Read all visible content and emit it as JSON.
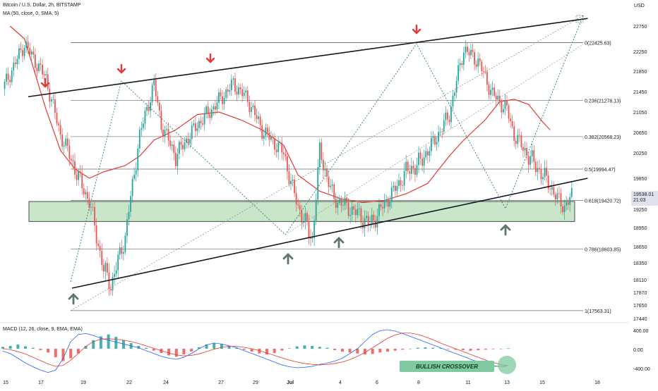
{
  "header": {
    "title": "Bitcoin / U.S. Dollar, 2h, BITSTAMP",
    "ma_label": "MA (50, close, 0, SMA, 5)",
    "currency": "USD"
  },
  "macd": {
    "label": "MACD (12, 26, close, 9, EMA, EMA)",
    "axis_labels": [
      "400.00",
      "0.00",
      "-400.00"
    ],
    "annotation": "BULLISH CROSSOVER"
  },
  "price_label": {
    "value": "19538.01",
    "countdown": "21:03"
  },
  "colors": {
    "up": "#26a69a",
    "down": "#ef5350",
    "ma": "#e53935",
    "zone": "#a5d6a7",
    "arrow_red": "#e53935",
    "arrow_grey": "#5d7670",
    "fib": "#555555"
  },
  "chart_data": {
    "type": "candlestick",
    "title": "Bitcoin / U.S. Dollar, 2h, BITSTAMP",
    "x_ticks": [
      "15",
      "17",
      "19",
      "22",
      "24",
      "27",
      "29",
      "Jul",
      "4",
      "6",
      "8",
      "11",
      "13",
      "15",
      "18"
    ],
    "y_ticks": [
      22750,
      22250,
      21850,
      21450,
      21050,
      20650,
      20250,
      19850,
      19250,
      18950,
      18650,
      18350,
      18110,
      17870,
      17650,
      17440
    ],
    "ylim": [
      17440,
      22950
    ],
    "last_price": 19538.01,
    "fib_levels": [
      {
        "ratio": 0,
        "price": 22425.63,
        "label": "0(22425.63)"
      },
      {
        "ratio": 0.236,
        "price": 21278.13,
        "label": "0.236(21278.13)"
      },
      {
        "ratio": 0.382,
        "price": 20568.23,
        "label": "0.382(20568.23)"
      },
      {
        "ratio": 0.5,
        "price": 19994.47,
        "label": "0.5(19994.47)"
      },
      {
        "ratio": 0.618,
        "price": 19420.72,
        "label": "0.618(19420.72)"
      },
      {
        "ratio": 0.786,
        "price": 18603.85,
        "label": "0.786(18603.85)"
      },
      {
        "ratio": 1,
        "price": 17563.31,
        "label": "1(17563.31)"
      }
    ],
    "support_zone": [
      19050,
      19400
    ],
    "price_path": [
      [
        0,
        21500
      ],
      [
        3,
        22400
      ],
      [
        6,
        21700
      ],
      [
        8,
        20600
      ],
      [
        10,
        20000
      ],
      [
        12,
        19400
      ],
      [
        14,
        18250
      ],
      [
        15,
        18000
      ],
      [
        17,
        18800
      ],
      [
        19,
        20600
      ],
      [
        21,
        21600
      ],
      [
        22,
        20800
      ],
      [
        24,
        20200
      ],
      [
        27,
        20800
      ],
      [
        29,
        21100
      ],
      [
        32,
        21600
      ],
      [
        34,
        21300
      ],
      [
        36,
        20700
      ],
      [
        39,
        20250
      ],
      [
        41,
        19300
      ],
      [
        43,
        18750
      ],
      [
        44,
        20300
      ],
      [
        46,
        19450
      ],
      [
        49,
        19200
      ],
      [
        51,
        19000
      ],
      [
        53,
        19350
      ],
      [
        56,
        19950
      ],
      [
        58,
        20100
      ],
      [
        60,
        20500
      ],
      [
        62,
        21000
      ],
      [
        64,
        22300
      ],
      [
        66,
        22050
      ],
      [
        68,
        21400
      ],
      [
        70,
        21100
      ],
      [
        71,
        20600
      ],
      [
        73,
        20200
      ],
      [
        75,
        19900
      ],
      [
        76,
        19700
      ],
      [
        77,
        19450
      ],
      [
        78,
        19300
      ],
      [
        79,
        19500
      ]
    ],
    "ma_path": [
      [
        1,
        22750
      ],
      [
        3,
        22500
      ],
      [
        6,
        21100
      ],
      [
        8,
        20300
      ],
      [
        10,
        20000
      ],
      [
        12,
        19850
      ],
      [
        14,
        19950
      ],
      [
        17,
        20050
      ],
      [
        19,
        20200
      ],
      [
        21,
        20500
      ],
      [
        24,
        20700
      ],
      [
        27,
        21000
      ],
      [
        30,
        21050
      ],
      [
        33,
        20900
      ],
      [
        36,
        20700
      ],
      [
        39,
        20400
      ],
      [
        41,
        19900
      ],
      [
        44,
        19600
      ],
      [
        47,
        19450
      ],
      [
        50,
        19380
      ],
      [
        53,
        19420
      ],
      [
        56,
        19550
      ],
      [
        59,
        19750
      ],
      [
        62,
        20200
      ],
      [
        64,
        20500
      ],
      [
        67,
        20900
      ],
      [
        69,
        21250
      ],
      [
        71,
        21300
      ],
      [
        73,
        21200
      ],
      [
        75,
        20850
      ],
      [
        76,
        20700
      ]
    ],
    "trendline_upper": [
      [
        0,
        21350
      ],
      [
        82,
        22900
      ]
    ],
    "trendline_lower": [
      [
        10,
        17950
      ],
      [
        82,
        19850
      ]
    ],
    "macd_hist": [
      40,
      60,
      90,
      50,
      20,
      -30,
      -80,
      -180,
      -260,
      -200,
      -100,
      60,
      180,
      260,
      300,
      250,
      180,
      120,
      60,
      20,
      -40,
      -90,
      -140,
      -170,
      -120,
      -60,
      30,
      90,
      120,
      100,
      60,
      20,
      -20,
      -60,
      -100,
      -120,
      -90,
      -40,
      10,
      50,
      70,
      60,
      40,
      20,
      -30,
      -60,
      -80,
      -100,
      -120,
      -110,
      -80,
      -60,
      -40,
      -20,
      0,
      20,
      30,
      20,
      10,
      -10,
      -20,
      -30,
      -40,
      -30,
      -20,
      -10,
      0,
      10
    ],
    "macd_line": [
      -50,
      -100,
      -200,
      -300,
      -380,
      -450,
      -500,
      -450,
      -200,
      150,
      300,
      320,
      280,
      220,
      180,
      140,
      100,
      60,
      20,
      -40,
      -100,
      -160,
      -200,
      -220,
      -180,
      -100,
      0,
      80,
      120,
      100,
      60,
      20,
      -40,
      -100,
      -160,
      -220,
      -280,
      -340,
      -380,
      -400,
      -390,
      -370,
      -330,
      -300,
      -260,
      -200,
      -100,
      0,
      150,
      300,
      380,
      400,
      370,
      320,
      260,
      200,
      140,
      80,
      20,
      -40,
      -100,
      -160,
      -220,
      -280,
      -330,
      -360,
      -370,
      -350
    ],
    "signal_line": [
      0,
      -20,
      -60,
      -110,
      -180,
      -250,
      -320,
      -370,
      -350,
      -240,
      -100,
      50,
      150,
      200,
      210,
      200,
      180,
      150,
      110,
      60,
      10,
      -40,
      -90,
      -130,
      -150,
      -140,
      -110,
      -60,
      -10,
      30,
      50,
      50,
      30,
      0,
      -40,
      -90,
      -140,
      -190,
      -240,
      -280,
      -310,
      -330,
      -340,
      -330,
      -310,
      -280,
      -230,
      -160,
      -80,
      20,
      120,
      220,
      290,
      330,
      330,
      300,
      250,
      190,
      120,
      60,
      0,
      -60,
      -120,
      -180,
      -240,
      -290,
      -330,
      -355
    ]
  }
}
